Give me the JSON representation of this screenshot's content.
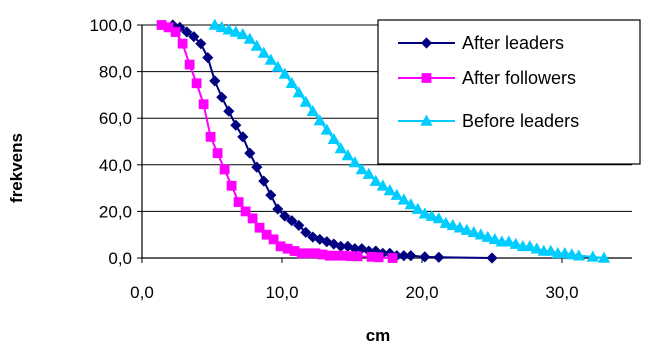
{
  "chart_data": {
    "type": "line",
    "title": "",
    "xlabel": "cm",
    "ylabel": "frekvens",
    "xlim": [
      0,
      35
    ],
    "ylim": [
      0,
      100
    ],
    "x_ticks": [
      "0,0",
      "10,0",
      "20,0",
      "30,0"
    ],
    "x_tick_values": [
      0,
      10,
      20,
      30
    ],
    "y_ticks": [
      "0,0",
      "20,0",
      "40,0",
      "60,0",
      "80,0",
      "100,0"
    ],
    "y_tick_values": [
      0,
      20,
      40,
      60,
      80,
      100
    ],
    "grid": "horizontal",
    "legend_position": "top-right",
    "series": [
      {
        "name": "After leaders",
        "color": "#000080",
        "marker": "diamond",
        "x": [
          2.2,
          2.7,
          3.2,
          3.7,
          4.2,
          4.7,
          5.2,
          5.7,
          6.2,
          6.7,
          7.2,
          7.7,
          8.2,
          8.7,
          9.2,
          9.7,
          10.2,
          10.7,
          11.2,
          11.7,
          12.2,
          12.7,
          13.2,
          13.7,
          14.2,
          14.7,
          15.2,
          15.7,
          16.2,
          16.7,
          17.2,
          17.7,
          18.2,
          18.7,
          19.2,
          20.2,
          21.2,
          25.0
        ],
        "y": [
          100,
          99,
          97,
          95,
          92,
          86,
          76,
          69,
          63,
          57,
          52,
          45,
          39,
          33,
          27,
          21,
          18,
          16,
          14,
          11,
          9,
          8,
          7,
          6,
          5,
          5,
          4,
          4,
          3,
          3,
          2,
          2,
          1,
          1,
          1,
          0.5,
          0.3,
          0
        ]
      },
      {
        "name": "After followers",
        "color": "#FF00FF",
        "marker": "square",
        "x": [
          1.4,
          1.9,
          2.4,
          2.9,
          3.4,
          3.9,
          4.4,
          4.9,
          5.4,
          5.9,
          6.4,
          6.9,
          7.4,
          7.9,
          8.4,
          8.9,
          9.4,
          9.9,
          10.4,
          10.9,
          11.4,
          11.9,
          12.4,
          12.9,
          13.4,
          13.9,
          14.4,
          14.9,
          15.4,
          16.4,
          16.9,
          17.9
        ],
        "y": [
          100,
          99,
          97,
          92,
          83,
          75,
          66,
          52,
          45,
          38,
          31,
          24,
          20,
          17,
          13,
          10,
          8,
          5,
          4,
          3,
          2,
          2,
          2,
          1.5,
          1,
          1,
          1,
          0.8,
          0.7,
          0.5,
          0.3,
          0
        ]
      },
      {
        "name": "Before leaders",
        "color": "#00CCFF",
        "marker": "triangle",
        "x": [
          5.2,
          5.7,
          6.2,
          6.7,
          7.2,
          7.7,
          8.2,
          8.7,
          9.2,
          9.7,
          10.2,
          10.7,
          11.2,
          11.7,
          12.2,
          12.7,
          13.2,
          13.7,
          14.2,
          14.7,
          15.2,
          15.7,
          16.2,
          16.7,
          17.2,
          17.7,
          18.2,
          18.7,
          19.2,
          19.7,
          20.2,
          20.7,
          21.2,
          21.7,
          22.2,
          22.7,
          23.2,
          23.7,
          24.2,
          24.7,
          25.2,
          25.7,
          26.2,
          26.7,
          27.2,
          27.7,
          28.2,
          28.7,
          29.2,
          29.7,
          30.2,
          30.7,
          31.2,
          32.2,
          33.0
        ],
        "y": [
          100,
          99,
          98,
          97,
          96,
          94,
          91,
          88,
          85,
          82,
          79,
          75,
          71,
          67,
          63,
          59,
          55,
          51,
          47,
          44,
          41,
          38,
          36,
          33,
          31,
          29,
          27,
          25,
          23,
          21,
          19,
          18,
          17,
          15,
          14,
          13,
          12,
          11,
          10,
          9,
          8,
          7,
          7,
          6,
          5,
          5,
          4,
          3,
          3,
          2,
          2,
          1.5,
          1,
          0.5,
          0
        ]
      }
    ]
  }
}
